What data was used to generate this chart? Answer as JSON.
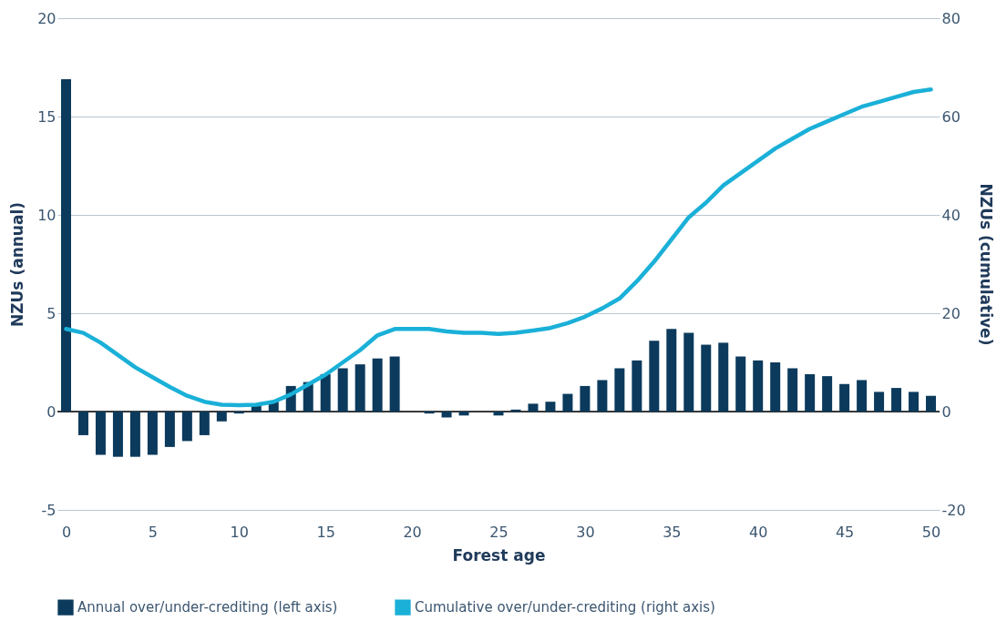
{
  "chart_data": {
    "type": "bar",
    "xlabel": "Forest age",
    "ylabel": "NZUs  (annual)",
    "y2label": "NZUs (cumulative)",
    "x": [
      0,
      1,
      2,
      3,
      4,
      5,
      6,
      7,
      8,
      9,
      10,
      11,
      12,
      13,
      14,
      15,
      16,
      17,
      18,
      19,
      20,
      21,
      22,
      23,
      24,
      25,
      26,
      27,
      28,
      29,
      30,
      31,
      32,
      33,
      34,
      35,
      36,
      37,
      38,
      39,
      40,
      41,
      42,
      43,
      44,
      45,
      46,
      47,
      48,
      49,
      50
    ],
    "series": [
      {
        "name": "Annual over/under-crediting (left axis)",
        "color": "#0b3a5c",
        "values": [
          16.9,
          -1.2,
          -2.2,
          -2.3,
          -2.3,
          -2.2,
          -1.8,
          -1.5,
          -1.2,
          -0.5,
          -0.1,
          0.3,
          0.5,
          1.3,
          1.5,
          1.9,
          2.2,
          2.4,
          2.7,
          2.8,
          0,
          -0.1,
          -0.3,
          -0.2,
          0,
          -0.2,
          0.1,
          0.4,
          0.5,
          0.9,
          1.3,
          1.6,
          2.2,
          2.6,
          3.6,
          4.2,
          4.0,
          3.4,
          3.5,
          2.8,
          2.6,
          2.5,
          2.2,
          1.9,
          1.8,
          1.4,
          1.6,
          1.0,
          1.2,
          1.0,
          0.8
        ]
      },
      {
        "name": "Cumulative over/under-crediting (right axis)",
        "type": "line",
        "axis": "y2",
        "color": "#1ab0d8",
        "values": [
          16.8,
          16,
          14,
          11.5,
          9,
          7,
          5,
          3.2,
          2,
          1.4,
          1.3,
          1.4,
          2,
          3.5,
          5.5,
          7.5,
          10,
          12.5,
          15.5,
          16.8,
          16.8,
          16.8,
          16.3,
          16,
          16,
          15.8,
          16,
          16.5,
          17,
          18,
          19.3,
          21,
          23,
          26.5,
          30.5,
          35,
          39.5,
          42.5,
          46,
          48.5,
          51,
          53.5,
          55.5,
          57.5,
          59,
          60.5,
          62,
          63,
          64,
          65,
          65.5
        ]
      }
    ],
    "xlim": [
      -0.5,
      50.5
    ],
    "xticks": [
      0,
      5,
      10,
      15,
      20,
      25,
      30,
      35,
      40,
      45,
      50
    ],
    "ylim": [
      -5,
      20
    ],
    "yticks": [
      -5,
      0,
      5,
      10,
      15,
      20
    ],
    "y2lim": [
      -20,
      80
    ],
    "y2ticks": [
      -20,
      0,
      20,
      40,
      60,
      80
    ],
    "grid": "y",
    "legend": "bottom",
    "line_style": "solid"
  }
}
